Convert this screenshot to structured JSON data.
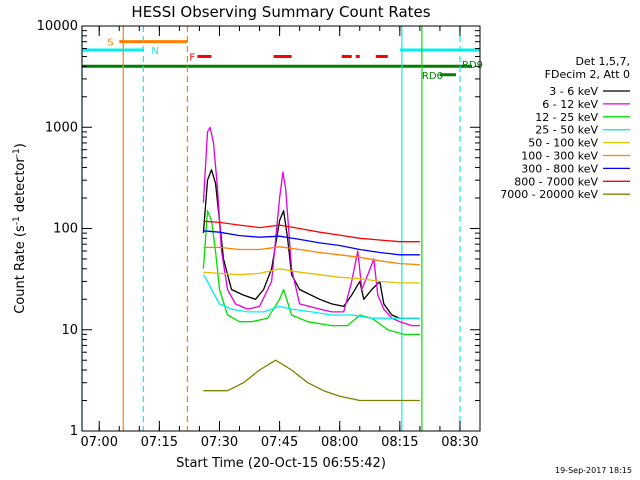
{
  "chart_data": {
    "type": "line",
    "title": "HESSI Observing Summary Count Rates",
    "xlabel": "Start Time (20-Oct-15 06:55:42)",
    "ylabel_main": "Count Rate (s",
    "ylabel_sup1": "-1",
    "ylabel_mid": " detector",
    "ylabel_sup2": "-1",
    "ylabel_end": ")",
    "xscale": "time",
    "yscale": "log",
    "xlim": [
      "06:55:42",
      "08:35:00"
    ],
    "ylim": [
      1,
      10000
    ],
    "x_ticks": [
      "07:00",
      "07:15",
      "07:30",
      "07:45",
      "08:00",
      "08:15",
      "08:30"
    ],
    "y_ticks": [
      {
        "value": 1,
        "label": "1"
      },
      {
        "value": 10,
        "label": "10"
      },
      {
        "value": 100,
        "label": "100"
      },
      {
        "value": 1000,
        "label": "1000"
      },
      {
        "value": 10000,
        "label": "10000"
      }
    ],
    "legend_header": [
      "Det 1,5,7,",
      "FDecim 2, Att 0"
    ],
    "legend_position": "right-outside",
    "series": [
      {
        "name": "3 - 6 keV",
        "color": "#000000",
        "points": [
          [
            "07:26:00",
            90
          ],
          [
            "07:27:00",
            300
          ],
          [
            "07:28:00",
            380
          ],
          [
            "07:29:00",
            280
          ],
          [
            "07:30:00",
            120
          ],
          [
            "07:31:00",
            50
          ],
          [
            "07:33:00",
            25
          ],
          [
            "07:36:00",
            22
          ],
          [
            "07:39:00",
            20
          ],
          [
            "07:41:00",
            25
          ],
          [
            "07:43:00",
            40
          ],
          [
            "07:45:00",
            120
          ],
          [
            "07:46:00",
            150
          ],
          [
            "07:47:00",
            80
          ],
          [
            "07:48:00",
            35
          ],
          [
            "07:50:00",
            25
          ],
          [
            "07:55:00",
            20
          ],
          [
            "07:58:00",
            18
          ],
          [
            "08:01:00",
            17
          ],
          [
            "08:03:00",
            22
          ],
          [
            "08:05:00",
            30
          ],
          [
            "08:06:00",
            20
          ],
          [
            "08:08:00",
            25
          ],
          [
            "08:10:00",
            30
          ],
          [
            "08:11:00",
            18
          ],
          [
            "08:13:00",
            14
          ],
          [
            "08:15:00",
            13
          ],
          [
            "08:18:00",
            13
          ],
          [
            "08:20:00",
            13
          ]
        ]
      },
      {
        "name": "6 - 12 keV",
        "color": "#e000e0",
        "points": [
          [
            "07:26:00",
            180
          ],
          [
            "07:27:00",
            900
          ],
          [
            "07:27:40",
            1000
          ],
          [
            "07:28:30",
            700
          ],
          [
            "07:29:30",
            250
          ],
          [
            "07:30:30",
            60
          ],
          [
            "07:32:00",
            25
          ],
          [
            "07:34:00",
            18
          ],
          [
            "07:37:00",
            16
          ],
          [
            "07:40:00",
            17
          ],
          [
            "07:43:00",
            30
          ],
          [
            "07:45:00",
            200
          ],
          [
            "07:45:50",
            360
          ],
          [
            "07:46:30",
            250
          ],
          [
            "07:48:00",
            40
          ],
          [
            "07:50:00",
            18
          ],
          [
            "07:55:00",
            16
          ],
          [
            "07:58:00",
            15
          ],
          [
            "08:01:00",
            15
          ],
          [
            "08:03:00",
            30
          ],
          [
            "08:04:30",
            60
          ],
          [
            "08:05:30",
            25
          ],
          [
            "08:07:00",
            35
          ],
          [
            "08:08:30",
            50
          ],
          [
            "08:09:30",
            22
          ],
          [
            "08:11:00",
            16
          ],
          [
            "08:13:00",
            13
          ],
          [
            "08:15:00",
            12
          ],
          [
            "08:18:00",
            11
          ],
          [
            "08:20:00",
            11
          ]
        ]
      },
      {
        "name": "12 - 25 keV",
        "color": "#00e000",
        "points": [
          [
            "07:26:00",
            40
          ],
          [
            "07:27:00",
            150
          ],
          [
            "07:28:00",
            120
          ],
          [
            "07:29:00",
            60
          ],
          [
            "07:30:00",
            25
          ],
          [
            "07:32:00",
            14
          ],
          [
            "07:35:00",
            12
          ],
          [
            "07:38:00",
            12
          ],
          [
            "07:42:00",
            13
          ],
          [
            "07:45:00",
            20
          ],
          [
            "07:46:00",
            25
          ],
          [
            "07:48:00",
            14
          ],
          [
            "07:52:00",
            12
          ],
          [
            "07:58:00",
            11
          ],
          [
            "08:02:00",
            11
          ],
          [
            "08:05:00",
            14
          ],
          [
            "08:08:00",
            13
          ],
          [
            "08:12:00",
            10
          ],
          [
            "08:16:00",
            9
          ],
          [
            "08:20:00",
            9
          ]
        ]
      },
      {
        "name": "25 - 50 keV",
        "color": "#00f0f0",
        "points": [
          [
            "07:26:00",
            35
          ],
          [
            "07:27:00",
            30
          ],
          [
            "07:28:00",
            25
          ],
          [
            "07:30:00",
            18
          ],
          [
            "07:33:00",
            16
          ],
          [
            "07:37:00",
            15
          ],
          [
            "07:41:00",
            15
          ],
          [
            "07:45:00",
            17
          ],
          [
            "07:48:00",
            16
          ],
          [
            "07:53:00",
            15
          ],
          [
            "07:58:00",
            14
          ],
          [
            "08:03:00",
            14
          ],
          [
            "08:08:00",
            13
          ],
          [
            "08:13:00",
            13
          ],
          [
            "08:18:00",
            13
          ],
          [
            "08:20:00",
            13
          ]
        ]
      },
      {
        "name": "50 - 100 keV",
        "color": "#e0c000",
        "points": [
          [
            "07:26:00",
            37
          ],
          [
            "07:30:00",
            36
          ],
          [
            "07:35:00",
            35
          ],
          [
            "07:40:00",
            36
          ],
          [
            "07:45:00",
            40
          ],
          [
            "07:50:00",
            37
          ],
          [
            "07:55:00",
            35
          ],
          [
            "08:00:00",
            33
          ],
          [
            "08:05:00",
            32
          ],
          [
            "08:10:00",
            30
          ],
          [
            "08:15:00",
            29
          ],
          [
            "08:20:00",
            29
          ]
        ]
      },
      {
        "name": "100 - 300 keV",
        "color": "#ff8000",
        "points": [
          [
            "07:26:00",
            65
          ],
          [
            "07:30:00",
            65
          ],
          [
            "07:35:00",
            62
          ],
          [
            "07:40:00",
            62
          ],
          [
            "07:45:00",
            66
          ],
          [
            "07:50:00",
            62
          ],
          [
            "07:55:00",
            58
          ],
          [
            "08:00:00",
            55
          ],
          [
            "08:05:00",
            52
          ],
          [
            "08:10:00",
            48
          ],
          [
            "08:15:00",
            45
          ],
          [
            "08:20:00",
            44
          ]
        ]
      },
      {
        "name": "300 - 800 keV",
        "color": "#0000ff",
        "points": [
          [
            "07:26:00",
            95
          ],
          [
            "07:30:00",
            92
          ],
          [
            "07:35:00",
            85
          ],
          [
            "07:40:00",
            82
          ],
          [
            "07:45:00",
            84
          ],
          [
            "07:50:00",
            78
          ],
          [
            "07:55:00",
            72
          ],
          [
            "08:00:00",
            68
          ],
          [
            "08:05:00",
            62
          ],
          [
            "08:10:00",
            58
          ],
          [
            "08:15:00",
            55
          ],
          [
            "08:20:00",
            55
          ]
        ]
      },
      {
        "name": "800 - 7000 keV",
        "color": "#ff0000",
        "points": [
          [
            "07:26:00",
            118
          ],
          [
            "07:30:00",
            115
          ],
          [
            "07:35:00",
            108
          ],
          [
            "07:40:00",
            102
          ],
          [
            "07:45:00",
            108
          ],
          [
            "07:50:00",
            100
          ],
          [
            "07:55:00",
            92
          ],
          [
            "08:00:00",
            86
          ],
          [
            "08:05:00",
            80
          ],
          [
            "08:10:00",
            77
          ],
          [
            "08:15:00",
            74
          ],
          [
            "08:20:00",
            74
          ]
        ]
      },
      {
        "name": "7000 - 20000 keV",
        "color": "#808000",
        "points": [
          [
            "07:26:00",
            2.5
          ],
          [
            "07:32:00",
            2.5
          ],
          [
            "07:36:00",
            3
          ],
          [
            "07:40:00",
            4
          ],
          [
            "07:44:00",
            5
          ],
          [
            "07:48:00",
            4
          ],
          [
            "07:52:00",
            3
          ],
          [
            "07:56:00",
            2.5
          ],
          [
            "08:00:00",
            2.2
          ],
          [
            "08:05:00",
            2
          ],
          [
            "08:10:00",
            2
          ],
          [
            "08:15:00",
            2
          ],
          [
            "08:20:00",
            2
          ]
        ]
      }
    ],
    "flag_bars": [
      {
        "label": "S",
        "color": "#ff8000",
        "y_level": 7000,
        "start": "07:05:00",
        "end": "07:22:00"
      },
      {
        "label": "N",
        "color": "#00f0f0",
        "y_level": 5800,
        "start": "06:55:42",
        "end": "07:11:00"
      },
      {
        "label": "N",
        "color": "#00f0f0",
        "y_level": 5800,
        "start": "08:15:00",
        "end": "08:35:00"
      },
      {
        "label": "",
        "color": "#008000",
        "y_level": 4000,
        "start": "06:55:42",
        "end": "08:33:00"
      },
      {
        "label": "RD6",
        "color": "#008000",
        "y_level": 3300,
        "start": "08:25:00",
        "end": "08:29:00"
      }
    ],
    "flag_labels": [
      {
        "text": "S",
        "color": "#ff8000",
        "x": "07:02:00",
        "y": 7000
      },
      {
        "text": "N",
        "color": "#00f0f0",
        "x": "07:13:00",
        "y": 5800
      },
      {
        "text": "F",
        "color": "#ff0000",
        "x": "07:22:30",
        "y": 5000
      },
      {
        "text": "RD9",
        "color": "#008000",
        "x": "08:30:30",
        "y": 4200
      },
      {
        "text": "RD6",
        "color": "#008000",
        "x": "08:20:30",
        "y": 3300
      }
    ],
    "flare_segments": {
      "color": "#ff0000",
      "y_level": 5000,
      "segments": [
        [
          "07:24:30",
          "07:28:00"
        ],
        [
          "07:43:30",
          "07:48:00"
        ],
        [
          "08:00:30",
          "08:03:00"
        ],
        [
          "08:04:00",
          "08:05:00"
        ],
        [
          "08:09:00",
          "08:12:00"
        ]
      ]
    },
    "vertical_lines": [
      {
        "time": "06:55:42",
        "color": "#00f0f0",
        "style": "solid"
      },
      {
        "time": "07:06:00",
        "color": "#ff8000",
        "style": "solid"
      },
      {
        "time": "07:11:00",
        "color": "#00f0f0",
        "style": "dashed"
      },
      {
        "time": "07:22:00",
        "color": "#ff8000",
        "style": "dashed"
      },
      {
        "time": "08:15:30",
        "color": "#00f0f0",
        "style": "solid"
      },
      {
        "time": "08:20:30",
        "color": "#00e000",
        "style": "solid"
      },
      {
        "time": "08:30:00",
        "color": "#00f0f0",
        "style": "dashed"
      }
    ]
  },
  "timestamp": "19-Sep-2017 18:15"
}
